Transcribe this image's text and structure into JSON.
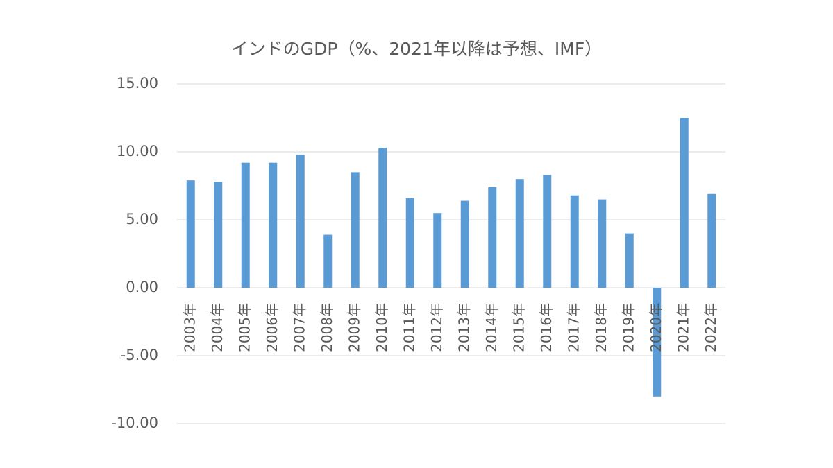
{
  "chart_data": {
    "type": "bar",
    "title": "インドのGDP（%、2021年以降は予想、IMF）",
    "categories": [
      "2003年",
      "2004年",
      "2005年",
      "2006年",
      "2007年",
      "2008年",
      "2009年",
      "2010年",
      "2011年",
      "2012年",
      "2013年",
      "2014年",
      "2015年",
      "2016年",
      "2017年",
      "2018年",
      "2019年",
      "2020年",
      "2021年",
      "2022年"
    ],
    "values": [
      7.9,
      7.8,
      9.2,
      9.2,
      9.8,
      3.9,
      8.5,
      10.3,
      6.6,
      5.5,
      6.4,
      7.4,
      8.0,
      8.3,
      6.8,
      6.5,
      4.0,
      -8.0,
      12.5,
      6.9
    ],
    "color": "#5b9bd5",
    "ylim": [
      -10,
      15
    ],
    "yticks": [
      {
        "value": -10,
        "label": "-10.00"
      },
      {
        "value": -5,
        "label": "-5.00"
      },
      {
        "value": 0,
        "label": "0.00"
      },
      {
        "value": 5,
        "label": "5.00"
      },
      {
        "value": 10,
        "label": "10.00"
      },
      {
        "value": 15,
        "label": "15.00"
      }
    ],
    "grid": true
  }
}
